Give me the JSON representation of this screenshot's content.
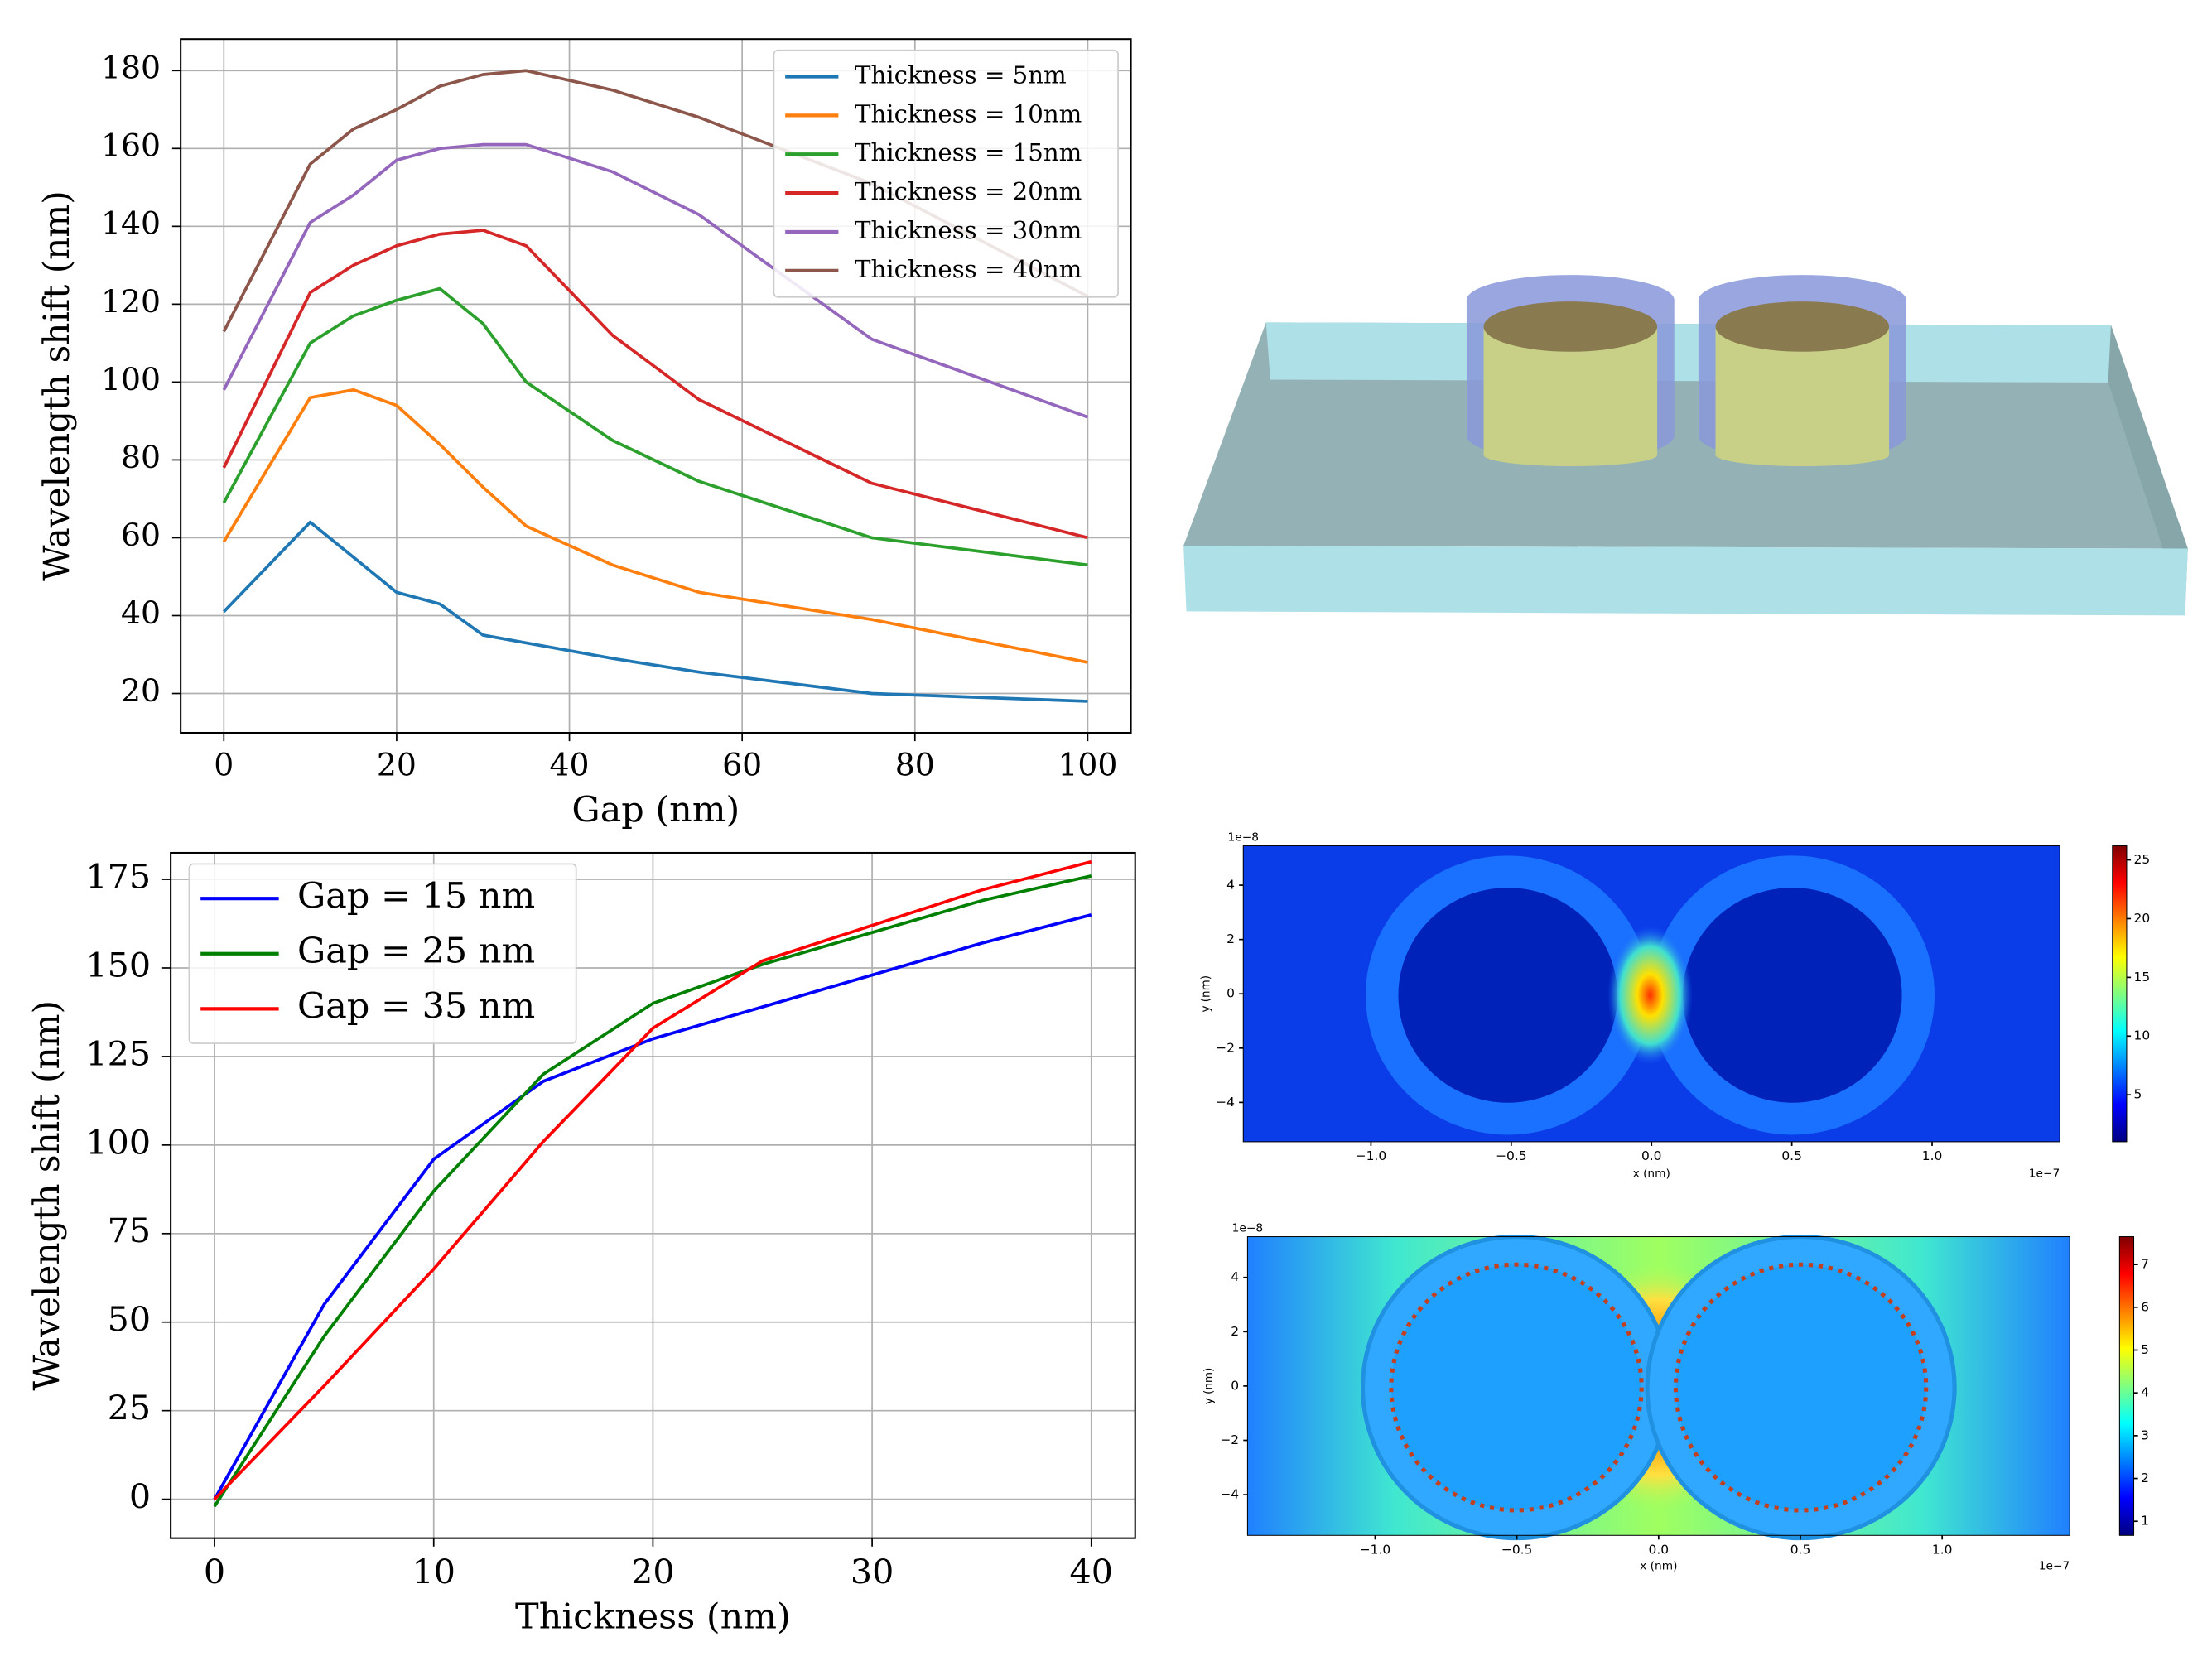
{
  "chart_data": [
    {
      "type": "line",
      "xlabel": "Gap (nm)",
      "ylabel": "Wavelength shift (nm)",
      "x": [
        0,
        10,
        15,
        20,
        25,
        30,
        35,
        45,
        55,
        75,
        100
      ],
      "series": [
        {
          "name": "Thickness = 5nm",
          "color": "#1f77b4",
          "values": [
            41,
            64,
            55,
            46,
            43,
            35,
            33,
            29,
            25.5,
            20,
            18
          ]
        },
        {
          "name": "Thickness = 10nm",
          "color": "#ff7f0e",
          "values": [
            59,
            96,
            98,
            94,
            84,
            73,
            63,
            53,
            46,
            39,
            28
          ]
        },
        {
          "name": "Thickness = 15nm",
          "color": "#2ca02c",
          "values": [
            69,
            110,
            117,
            121,
            124,
            115,
            100,
            85,
            74.5,
            60,
            53
          ]
        },
        {
          "name": "Thickness = 20nm",
          "color": "#d62728",
          "values": [
            78,
            123,
            130,
            135,
            138,
            139,
            135,
            112,
            95.5,
            74,
            60
          ]
        },
        {
          "name": "Thickness = 30nm",
          "color": "#9467bd",
          "values": [
            98,
            141,
            148,
            157,
            160,
            161,
            161,
            154,
            143,
            111,
            91
          ]
        },
        {
          "name": "Thickness = 40nm",
          "color": "#8c564b",
          "values": [
            113,
            156,
            165,
            170,
            176,
            179,
            180,
            175,
            168,
            151,
            122
          ]
        }
      ],
      "xlim": [
        -5,
        105
      ],
      "xticks": [
        0,
        20,
        40,
        60,
        80,
        100
      ],
      "ylim": [
        9.9,
        188.1
      ],
      "yticks": [
        20,
        40,
        60,
        80,
        100,
        120,
        140,
        160,
        180
      ],
      "grid": true,
      "legend": "upper right"
    },
    {
      "type": "line",
      "xlabel": "Thickness (nm)",
      "ylabel": "Wavelength shift (nm)",
      "x": [
        0,
        5,
        10,
        15,
        20,
        25,
        30,
        35,
        40
      ],
      "series": [
        {
          "name": "Gap = 15 nm",
          "color": "#0000ff",
          "values": [
            0,
            55,
            96,
            118,
            130,
            139,
            148,
            157,
            165
          ]
        },
        {
          "name": "Gap = 25 nm",
          "color": "#008000",
          "values": [
            -2,
            46,
            87,
            120,
            140,
            151,
            160,
            169,
            176
          ]
        },
        {
          "name": "Gap = 35 nm",
          "color": "#ff0000",
          "values": [
            0,
            32,
            65,
            101,
            133,
            152,
            162,
            172,
            180
          ]
        }
      ],
      "xlim": [
        -2,
        42
      ],
      "xticks": [
        0,
        10,
        20,
        30,
        40
      ],
      "ylim": [
        -11,
        182.5
      ],
      "yticks": [
        0,
        25,
        50,
        75,
        100,
        125,
        150,
        175
      ],
      "grid": true,
      "legend": "upper left"
    },
    {
      "type": "heatmap",
      "xlabel": "x (nm)",
      "ylabel": "y (nm)",
      "x_offset": "1e−7",
      "y_offset": "1e−8",
      "colormap": "jet",
      "xlim": [
        -1.455,
        1.455
      ],
      "xticks": [
        {
          "value": -1,
          "label": "−1.0"
        },
        {
          "value": -0.5,
          "label": "−0.5"
        },
        {
          "value": 0,
          "label": "0.0"
        },
        {
          "value": 0.5,
          "label": "0.5"
        },
        {
          "value": 1,
          "label": "1.0"
        }
      ],
      "ylim": [
        -5.45,
        5.45
      ],
      "yticks": [
        {
          "value": -4,
          "label": "−4"
        },
        {
          "value": -2,
          "label": "−2"
        },
        0,
        2,
        4
      ],
      "clim": [
        1,
        26.2
      ],
      "cticks": [
        5,
        10,
        15,
        20,
        25
      ]
    },
    {
      "type": "heatmap",
      "xlabel": "x (nm)",
      "ylabel": "y (nm)",
      "x_offset": "1e−7",
      "y_offset": "1e−8",
      "colormap": "jet",
      "xlim": [
        -1.45,
        1.45
      ],
      "xticks": [
        {
          "value": -1,
          "label": "−1.0"
        },
        {
          "value": -0.5,
          "label": "−0.5"
        },
        {
          "value": 0,
          "label": "0.0"
        },
        {
          "value": 0.5,
          "label": "0.5"
        },
        {
          "value": 1,
          "label": "1.0"
        }
      ],
      "ylim": [
        -5.5,
        5.5
      ],
      "yticks": [
        {
          "value": -4,
          "label": "−4"
        },
        {
          "value": -2,
          "label": "−2"
        },
        0,
        2,
        4
      ],
      "clim": [
        0.67,
        7.65
      ],
      "cticks": [
        1,
        2,
        3,
        4,
        5,
        6,
        7
      ]
    }
  ]
}
